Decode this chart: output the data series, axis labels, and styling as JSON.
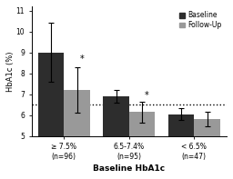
{
  "groups": [
    "≥ 7.5%\n(n=96)",
    "6.5-7.4%\n(n=95)",
    "< 6.5%\n(n=47)"
  ],
  "baseline_values": [
    9.0,
    6.9,
    6.05
  ],
  "followup_values": [
    7.2,
    6.15,
    5.8
  ],
  "baseline_errors_up": [
    1.4,
    0.3,
    0.28
  ],
  "baseline_errors_dn": [
    1.4,
    0.3,
    0.28
  ],
  "followup_errors_up": [
    1.1,
    0.5,
    0.35
  ],
  "followup_errors_dn": [
    1.1,
    0.5,
    0.35
  ],
  "baseline_color": "#2d2d2d",
  "followup_color": "#999999",
  "dotted_line_y": 6.5,
  "ylim": [
    5.0,
    11.2
  ],
  "yticks": [
    5,
    6,
    7,
    8,
    9,
    10,
    11
  ],
  "ylabel": "HbA1c (%)",
  "xlabel": "Baseline HbA1c",
  "bar_width": 0.28,
  "group_centers": [
    0.35,
    1.05,
    1.75
  ],
  "legend_labels": [
    "Baseline",
    "Follow-Up"
  ]
}
